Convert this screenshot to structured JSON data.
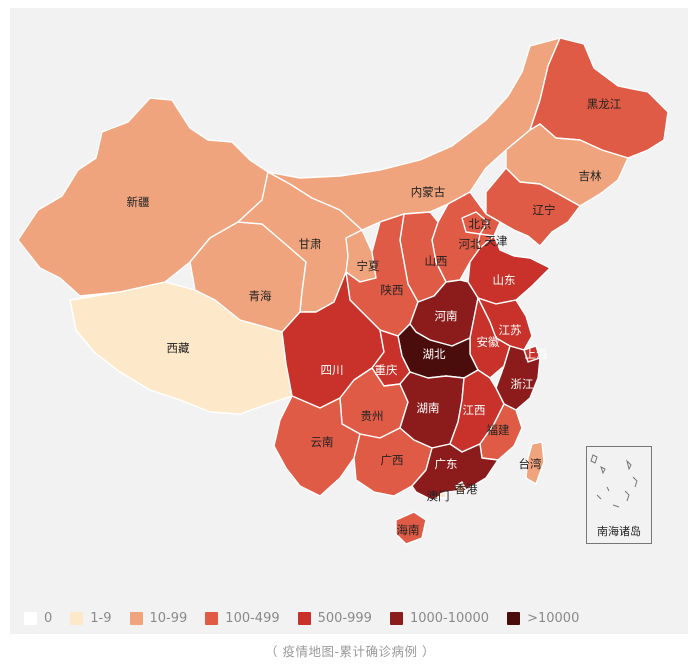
{
  "map": {
    "provinces": [
      {
        "id": "xinjiang",
        "name": "新疆",
        "level": "10-99"
      },
      {
        "id": "xizang",
        "name": "西藏",
        "level": "1-9"
      },
      {
        "id": "qinghai",
        "name": "青海",
        "level": "10-99"
      },
      {
        "id": "gansu",
        "name": "甘肃",
        "level": "10-99"
      },
      {
        "id": "neimenggu",
        "name": "内蒙古",
        "level": "10-99"
      },
      {
        "id": "heilongjiang",
        "name": "黑龙江",
        "level": "100-499"
      },
      {
        "id": "jilin",
        "name": "吉林",
        "level": "10-99"
      },
      {
        "id": "liaoning",
        "name": "辽宁",
        "level": "100-499"
      },
      {
        "id": "beijing",
        "name": "北京",
        "level": "100-499"
      },
      {
        "id": "tianjin",
        "name": "天津",
        "level": "100-499"
      },
      {
        "id": "hebei",
        "name": "河北",
        "level": "100-499"
      },
      {
        "id": "shanxi",
        "name": "山西",
        "level": "100-499"
      },
      {
        "id": "ningxia",
        "name": "宁夏",
        "level": "10-99"
      },
      {
        "id": "shaanxi",
        "name": "陕西",
        "level": "100-499"
      },
      {
        "id": "shandong",
        "name": "山东",
        "level": "500-999"
      },
      {
        "id": "henan",
        "name": "河南",
        "level": "1000-10000"
      },
      {
        "id": "jiangsu",
        "name": "江苏",
        "level": "500-999"
      },
      {
        "id": "anhui",
        "name": "安徽",
        "level": "500-999"
      },
      {
        "id": "shanghai",
        "name": "上海",
        "level": "500-999"
      },
      {
        "id": "hubei",
        "name": "湖北",
        "level": ">10000"
      },
      {
        "id": "zhejiang",
        "name": "浙江",
        "level": "1000-10000"
      },
      {
        "id": "sichuan",
        "name": "四川",
        "level": "500-999"
      },
      {
        "id": "chongqing",
        "name": "重庆",
        "level": "500-999"
      },
      {
        "id": "hunan",
        "name": "湖南",
        "level": "1000-10000"
      },
      {
        "id": "jiangxi",
        "name": "江西",
        "level": "500-999"
      },
      {
        "id": "guizhou",
        "name": "贵州",
        "level": "100-499"
      },
      {
        "id": "fujian",
        "name": "福建",
        "level": "100-499"
      },
      {
        "id": "yunnan",
        "name": "云南",
        "level": "100-499"
      },
      {
        "id": "guangxi",
        "name": "广西",
        "level": "100-499"
      },
      {
        "id": "guangdong",
        "name": "广东",
        "level": "1000-10000"
      },
      {
        "id": "taiwan",
        "name": "台湾",
        "level": "10-99"
      },
      {
        "id": "xianggang",
        "name": "香港",
        "level": "10-99"
      },
      {
        "id": "aomen",
        "name": "澳门",
        "level": "1-9"
      },
      {
        "id": "hainan",
        "name": "海南",
        "level": "100-499"
      }
    ],
    "inset_label": "南海诸岛"
  },
  "legend": [
    {
      "label": "0",
      "color": "#ffffff"
    },
    {
      "label": "1-9",
      "color": "#fde9c9"
    },
    {
      "label": "10-99",
      "color": "#f0a47e"
    },
    {
      "label": "100-499",
      "color": "#e05b45"
    },
    {
      "label": "500-999",
      "color": "#c8322a"
    },
    {
      "label": "1000-10000",
      "color": "#8c1c1c"
    },
    {
      "label": ">10000",
      "color": "#4b0c0c"
    }
  ],
  "caption": "（ 疫情地图-累计确诊病例 ）"
}
